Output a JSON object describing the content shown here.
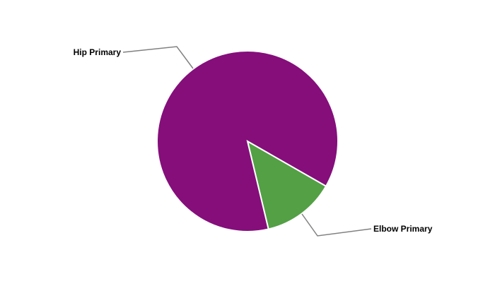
{
  "chart_data": {
    "type": "pie",
    "title": "",
    "slices": [
      {
        "label": "Elbow Primary",
        "value": 13,
        "color": "#53A045"
      },
      {
        "label": "Hip Primary",
        "value": 87,
        "color": "#850E7B"
      }
    ],
    "legend": "none",
    "labels": "outside-with-leader-lines"
  }
}
